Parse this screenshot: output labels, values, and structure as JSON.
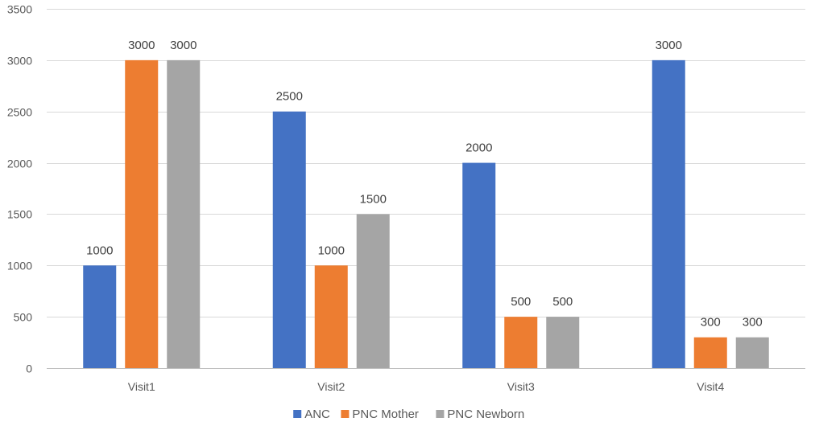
{
  "chart_data": {
    "type": "bar",
    "categories": [
      "Visit1",
      "Visit2",
      "Visit3",
      "Visit4"
    ],
    "series": [
      {
        "name": "ANC",
        "color": "#4472C4",
        "values": [
          1000,
          2500,
          2000,
          3000
        ]
      },
      {
        "name": "PNC Mother",
        "color": "#ED7D31",
        "values": [
          3000,
          1000,
          500,
          300
        ]
      },
      {
        "name": "PNC Newborn",
        "color": "#A5A5A5",
        "values": [
          3000,
          1500,
          500,
          300
        ]
      }
    ],
    "title": "",
    "xlabel": "",
    "ylabel": "",
    "ylim": [
      0,
      3500
    ],
    "yticks": [
      0,
      500,
      1000,
      1500,
      2000,
      2500,
      3000,
      3500
    ],
    "grid": true,
    "legend": "bottom",
    "data_labels": true
  }
}
